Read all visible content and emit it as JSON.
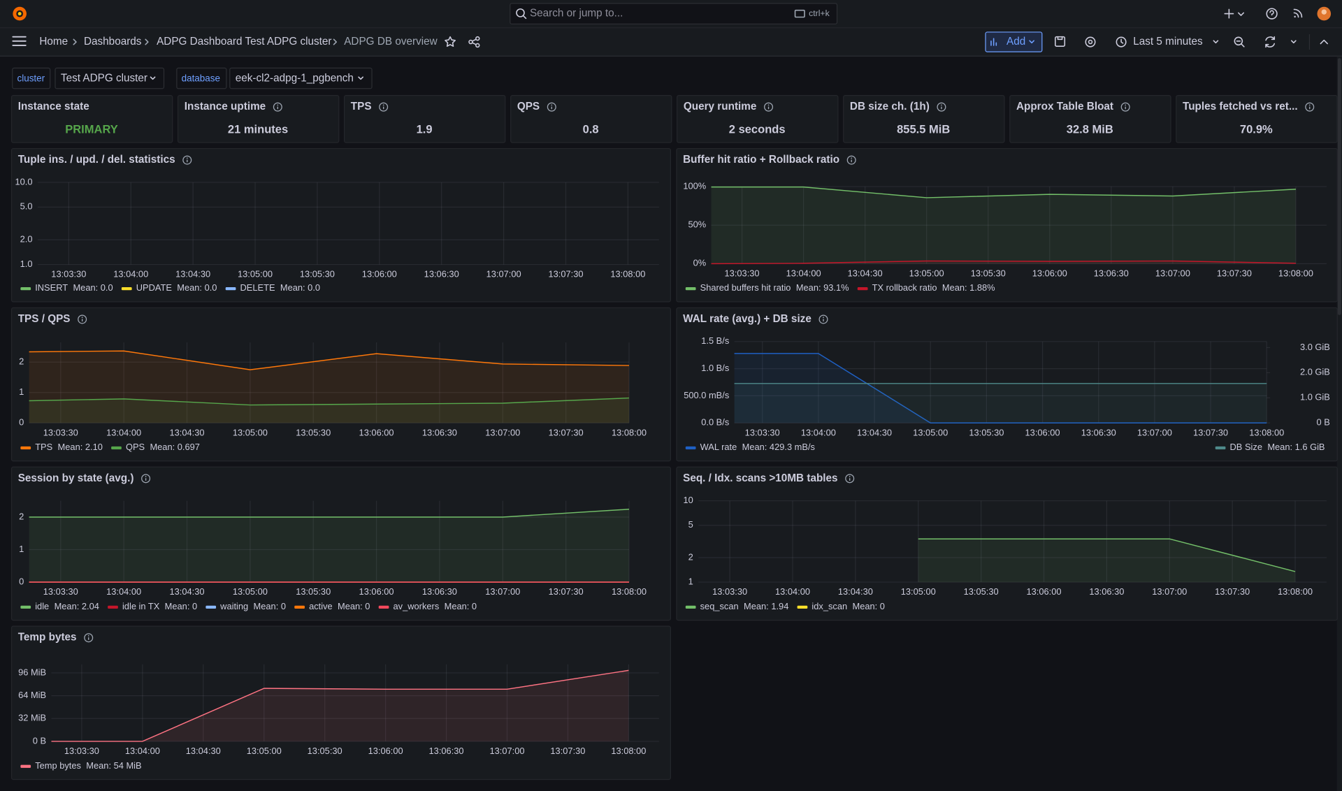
{
  "header": {
    "search_placeholder": "Search or jump to...",
    "search_shortcut": "ctrl+k",
    "breadcrumbs": [
      "Home",
      "Dashboards",
      "ADPG Dashboard Test ADPG cluster",
      "ADPG DB overview"
    ],
    "add_button": "Add",
    "time_range": "Last 5 minutes"
  },
  "variables": [
    {
      "label": "cluster",
      "value": "Test ADPG cluster"
    },
    {
      "label": "database",
      "value": "eek-cl2-adpg-1_pgbench"
    }
  ],
  "stats": [
    {
      "title": "Instance state",
      "value": "PRIMARY",
      "color": "#56a64b"
    },
    {
      "title": "Instance uptime",
      "value": "21 minutes"
    },
    {
      "title": "TPS",
      "value": "1.9"
    },
    {
      "title": "QPS",
      "value": "0.8"
    },
    {
      "title": "Query runtime",
      "value": "2 seconds"
    },
    {
      "title": "DB size ch. (1h)",
      "value": "855.5 MiB"
    },
    {
      "title": "Approx Table Bloat",
      "value": "32.8 MiB"
    },
    {
      "title": "Tuples fetched vs ret...",
      "value": "70.9%"
    }
  ],
  "panels": [
    {
      "type": "line",
      "title": "Tuple ins. / upd. / del. statistics",
      "yscale": "log",
      "grid": true,
      "xlim": [
        "13:03:15",
        "13:08:15"
      ],
      "xticks": [
        "13:03:30",
        "13:04:00",
        "13:04:30",
        "13:05:00",
        "13:05:30",
        "13:06:00",
        "13:06:30",
        "13:07:00",
        "13:07:30",
        "13:08:00"
      ],
      "ylim": [
        1,
        10
      ],
      "yticks": [
        {
          "value": 1,
          "label": "1.0"
        },
        {
          "value": 2,
          "label": "2.0"
        },
        {
          "value": 5,
          "label": "5.0"
        },
        {
          "value": 10,
          "label": "10.0"
        }
      ],
      "series": [
        {
          "name": "INSERT",
          "color": "#73bf69",
          "mean": "Mean: 0.0"
        },
        {
          "name": "UPDATE",
          "color": "#fade2a",
          "mean": "Mean: 0.0"
        },
        {
          "name": "DELETE",
          "color": "#8ab8ff",
          "mean": "Mean: 0.0"
        }
      ]
    },
    {
      "type": "line",
      "title": "Buffer hit ratio + Rollback ratio",
      "yscale": "linear",
      "grid": true,
      "x": [
        "13:03:15",
        "13:04:00",
        "13:05:00",
        "13:06:00",
        "13:07:00",
        "13:08:00"
      ],
      "xlim": [
        "13:03:15",
        "13:08:15"
      ],
      "xticks": [
        "13:03:30",
        "13:04:00",
        "13:04:30",
        "13:05:00",
        "13:05:30",
        "13:06:00",
        "13:06:30",
        "13:07:00",
        "13:07:30",
        "13:08:00"
      ],
      "ylim": [
        0,
        100
      ],
      "yticks": [
        {
          "value": 0,
          "label": "0%"
        },
        {
          "value": 50,
          "label": "50%"
        },
        {
          "value": 100,
          "label": "100%"
        }
      ],
      "series": [
        {
          "name": "Shared buffers hit ratio",
          "color": "#73bf69",
          "values": [
            99.5,
            99.5,
            85.6,
            90,
            87.8,
            96.7
          ],
          "mean": "Mean: 93.1%"
        },
        {
          "name": "TX rollback ratio",
          "color": "#c4162a",
          "values": [
            0,
            0.5,
            3.5,
            3,
            3.5,
            0.5
          ],
          "mean": "Mean: 1.88%"
        }
      ]
    },
    {
      "type": "line",
      "title": "TPS / QPS",
      "yscale": "linear",
      "grid": true,
      "x": [
        "13:03:15",
        "13:04:00",
        "13:05:00",
        "13:06:00",
        "13:07:00",
        "13:08:00"
      ],
      "xlim": [
        "13:03:15",
        "13:08:00"
      ],
      "xticks": [
        "13:03:30",
        "13:04:00",
        "13:04:30",
        "13:05:00",
        "13:05:30",
        "13:06:00",
        "13:06:30",
        "13:07:00",
        "13:07:30",
        "13:08:00"
      ],
      "ylim": [
        0,
        2.65
      ],
      "yticks": [
        0,
        1,
        2
      ],
      "series": [
        {
          "name": "TPS",
          "color": "#ff780a",
          "values": [
            2.34,
            2.37,
            1.75,
            2.28,
            1.94,
            1.89
          ],
          "mean": "Mean: 2.10"
        },
        {
          "name": "QPS",
          "color": "#56a64b",
          "values": [
            0.73,
            0.79,
            0.59,
            0.62,
            0.65,
            0.82
          ],
          "mean": "Mean: 0.697"
        }
      ]
    },
    {
      "type": "line",
      "title": "WAL rate (avg.) + DB size",
      "yscale": "linear",
      "grid": true,
      "x": [
        "13:03:15",
        "13:04:00",
        "13:05:00",
        "13:06:00",
        "13:07:00",
        "13:08:00"
      ],
      "xlim": [
        "13:03:15",
        "13:08:00"
      ],
      "xticks": [
        "13:03:30",
        "13:04:00",
        "13:04:30",
        "13:05:00",
        "13:05:30",
        "13:06:00",
        "13:06:30",
        "13:07:00",
        "13:07:30",
        "13:08:00"
      ],
      "ylim": [
        0,
        1.5
      ],
      "yticks": [
        {
          "value": 0,
          "label": "0.0 B/s"
        },
        {
          "value": 0.5,
          "label": "500.0 mB/s"
        },
        {
          "value": 1,
          "label": "1.0 B/s"
        },
        {
          "value": 1.5,
          "label": "1.5 B/s"
        }
      ],
      "y2lim": [
        0,
        3.24
      ],
      "y2ticks": [
        {
          "value": 0,
          "label": "0 B"
        },
        {
          "value": 1,
          "label": "1.0 GiB"
        },
        {
          "value": 2,
          "label": "2.0 GiB"
        },
        {
          "value": 3,
          "label": "3.0 GiB"
        }
      ],
      "series": [
        {
          "name": "WAL rate",
          "color": "#1f60c4",
          "values": [
            1.28,
            1.28,
            0,
            0,
            0,
            0
          ],
          "mean": "Mean: 429.3 mB/s"
        },
        {
          "name": "DB Size",
          "color": "#4f8a8b",
          "axis": "y2",
          "values": [
            1.57,
            1.57,
            1.57,
            1.57,
            1.57,
            1.57
          ],
          "mean": "Mean: 1.6 GiB"
        }
      ]
    },
    {
      "type": "line",
      "title": "Session by state (avg.)",
      "yscale": "linear",
      "grid": true,
      "x": [
        "13:03:15",
        "13:04:00",
        "13:05:00",
        "13:06:00",
        "13:07:00",
        "13:08:00"
      ],
      "xlim": [
        "13:03:15",
        "13:08:00"
      ],
      "xticks": [
        "13:03:30",
        "13:04:00",
        "13:04:30",
        "13:05:00",
        "13:05:30",
        "13:06:00",
        "13:06:30",
        "13:07:00",
        "13:07:30",
        "13:08:00"
      ],
      "ylim": [
        0,
        2.5
      ],
      "yticks": [
        0,
        1,
        2
      ],
      "series": [
        {
          "name": "idle",
          "color": "#73bf69",
          "values": [
            2,
            2,
            2,
            2,
            2,
            2.24
          ],
          "mean": "Mean: 2.04"
        },
        {
          "name": "idle in TX",
          "color": "#c4162a",
          "values": [
            0,
            0,
            0,
            0,
            0,
            0
          ],
          "mean": "Mean: 0"
        },
        {
          "name": "waiting",
          "color": "#8ab8ff",
          "values": [
            0,
            0,
            0,
            0,
            0,
            0
          ],
          "mean": "Mean: 0"
        },
        {
          "name": "active",
          "color": "#ff780a",
          "values": [
            0,
            0,
            0,
            0,
            0,
            0
          ],
          "mean": "Mean: 0"
        },
        {
          "name": "av_workers",
          "color": "#f2495c",
          "values": [
            0,
            0,
            0,
            0,
            0,
            0
          ],
          "mean": "Mean: 0"
        }
      ]
    },
    {
      "type": "line",
      "title": "Seq. / Idx. scans >10MB tables",
      "yscale": "log",
      "grid": true,
      "x": [
        "13:03:15",
        "13:04:00",
        "13:05:00",
        "13:06:00",
        "13:07:00",
        "13:08:00"
      ],
      "xlim": [
        "13:03:15",
        "13:08:15"
      ],
      "xticks": [
        "13:03:30",
        "13:04:00",
        "13:04:30",
        "13:05:00",
        "13:05:30",
        "13:06:00",
        "13:06:30",
        "13:07:00",
        "13:07:30",
        "13:08:00"
      ],
      "ylim": [
        1,
        10
      ],
      "yticks": [
        1,
        2,
        5,
        10
      ],
      "series": [
        {
          "name": "seq_scan",
          "color": "#73bf69",
          "values": [
            0,
            0,
            3.4,
            3.4,
            3.4,
            1.35
          ],
          "mean": "Mean: 1.94"
        },
        {
          "name": "idx_scan",
          "color": "#fade2a",
          "mean": "Mean: 0"
        }
      ]
    },
    {
      "type": "line",
      "title": "Temp bytes",
      "yscale": "linear",
      "grid": true,
      "x": [
        "13:03:15",
        "13:04:00",
        "13:05:00",
        "13:06:00",
        "13:07:00",
        "13:08:00"
      ],
      "xlim": [
        "13:03:15",
        "13:08:15"
      ],
      "xticks": [
        "13:03:30",
        "13:04:00",
        "13:04:30",
        "13:05:00",
        "13:05:30",
        "13:06:00",
        "13:06:30",
        "13:07:00",
        "13:07:30",
        "13:08:00"
      ],
      "ylim": [
        0,
        108
      ],
      "yticks": [
        {
          "value": 0,
          "label": "0 B"
        },
        {
          "value": 32,
          "label": "32 MiB"
        },
        {
          "value": 64,
          "label": "64 MiB"
        },
        {
          "value": 96,
          "label": "96 MiB"
        }
      ],
      "series": [
        {
          "name": "Temp bytes",
          "color": "#ff7383",
          "values": [
            0,
            0,
            74.3,
            73.1,
            73.1,
            99.5
          ],
          "mean": "Mean: 54 MiB"
        }
      ]
    }
  ]
}
